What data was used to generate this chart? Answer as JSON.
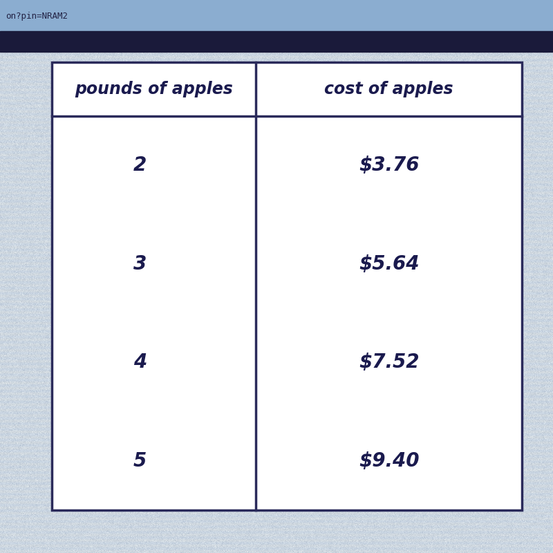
{
  "col1_header": "pounds of apples",
  "col2_header": "cost of apples",
  "rows": [
    [
      "2",
      "$3.76"
    ],
    [
      "3",
      "$5.64"
    ],
    [
      "4",
      "$7.52"
    ],
    [
      "5",
      "$9.40"
    ]
  ],
  "table_bg": "#ffffff",
  "header_text_color": "#1a1a4e",
  "data_text_color": "#1a1a4e",
  "border_color": "#2a2a5a",
  "header_font_size": 17,
  "data_font_size": 20,
  "top_bar_color": "#1a1a3a",
  "top_bar2_color": "#5a7aaa",
  "url_text": "on?pin=NRAM2",
  "url_color": "#222244",
  "url_font_size": 9,
  "bg_color_main": "#c8d4e0",
  "bg_noise_seed": 42
}
